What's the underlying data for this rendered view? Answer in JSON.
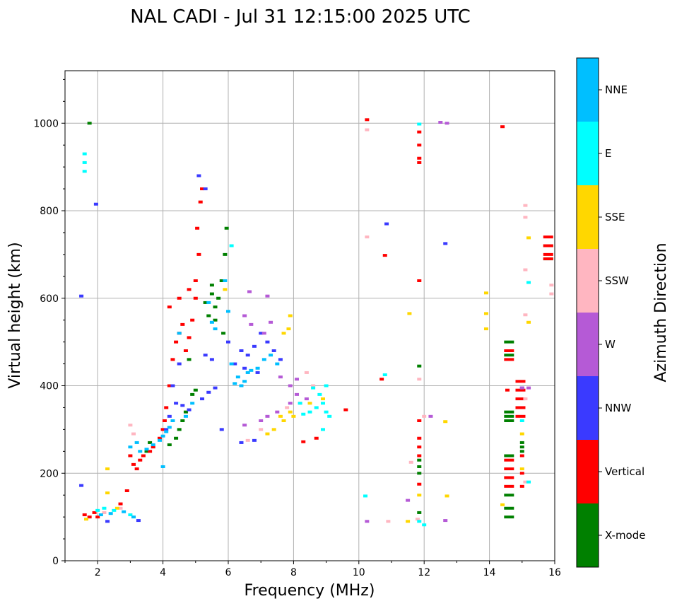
{
  "chart_data": {
    "type": "scatter",
    "title": "NAL CADI - Jul 31 12:15:00 2025 UTC",
    "xlabel": "Frequency (MHz)",
    "ylabel": "Virtual height (km)",
    "xlim": [
      1,
      16
    ],
    "ylim": [
      0,
      1120
    ],
    "xticks": [
      2,
      4,
      6,
      8,
      10,
      12,
      14,
      16
    ],
    "yticks": [
      0,
      200,
      400,
      600,
      800,
      1000
    ],
    "grid": true,
    "colorbar": {
      "label": "Azimuth Direction",
      "categories": [
        {
          "name": "X-mode",
          "color": "#008000"
        },
        {
          "name": "Vertical",
          "color": "#ff0000"
        },
        {
          "name": "NNW",
          "color": "#3a3aff"
        },
        {
          "name": "W",
          "color": "#b55ad6"
        },
        {
          "name": "SSW",
          "color": "#ffb6c1"
        },
        {
          "name": "SSE",
          "color": "#ffd700"
        },
        {
          "name": "E",
          "color": "#00ffff"
        },
        {
          "name": "NNE",
          "color": "#00bfff"
        }
      ]
    },
    "series": [
      {
        "name": "X-mode",
        "points": [
          [
            1.75,
            1000
          ],
          [
            5.5,
            610
          ],
          [
            5.6,
            580
          ],
          [
            5.4,
            560
          ],
          [
            5.8,
            640
          ],
          [
            5.9,
            700
          ],
          [
            5.95,
            760
          ],
          [
            5.7,
            600
          ],
          [
            5.5,
            630
          ],
          [
            5.6,
            550
          ],
          [
            5.3,
            590
          ],
          [
            5.85,
            520
          ],
          [
            4.8,
            460
          ],
          [
            4.6,
            320
          ],
          [
            4.7,
            340
          ],
          [
            4.9,
            380
          ],
          [
            5.0,
            390
          ],
          [
            4.4,
            280
          ],
          [
            4.5,
            300
          ],
          [
            4.2,
            265
          ],
          [
            3.6,
            270
          ],
          [
            3.5,
            250
          ],
          [
            11.85,
            445
          ],
          [
            11.85,
            230
          ],
          [
            11.85,
            215
          ],
          [
            11.85,
            200
          ],
          [
            11.85,
            110
          ],
          [
            14.6,
            500
          ],
          [
            14.6,
            470
          ],
          [
            14.6,
            320
          ],
          [
            14.6,
            330
          ],
          [
            14.6,
            340
          ],
          [
            14.6,
            240
          ],
          [
            14.6,
            150
          ],
          [
            14.6,
            120
          ],
          [
            14.6,
            100
          ],
          [
            15.0,
            270
          ],
          [
            15.0,
            260
          ],
          [
            15.0,
            250
          ],
          [
            15.8,
            690
          ],
          [
            15.8,
            720
          ]
        ]
      },
      {
        "name": "Vertical",
        "points": [
          [
            1.6,
            105
          ],
          [
            1.75,
            100
          ],
          [
            1.9,
            110
          ],
          [
            2.0,
            100
          ],
          [
            2.7,
            130
          ],
          [
            2.9,
            160
          ],
          [
            3.0,
            240
          ],
          [
            3.1,
            220
          ],
          [
            3.2,
            210
          ],
          [
            3.3,
            230
          ],
          [
            3.4,
            240
          ],
          [
            3.6,
            250
          ],
          [
            3.7,
            260
          ],
          [
            3.9,
            280
          ],
          [
            4.0,
            300
          ],
          [
            4.05,
            320
          ],
          [
            4.1,
            350
          ],
          [
            4.2,
            400
          ],
          [
            4.3,
            460
          ],
          [
            4.4,
            500
          ],
          [
            4.5,
            520
          ],
          [
            4.6,
            540
          ],
          [
            4.7,
            480
          ],
          [
            4.8,
            510
          ],
          [
            4.9,
            550
          ],
          [
            5.0,
            600
          ],
          [
            5.1,
            700
          ],
          [
            5.05,
            760
          ],
          [
            5.2,
            850
          ],
          [
            4.2,
            580
          ],
          [
            4.5,
            600
          ],
          [
            4.8,
            620
          ],
          [
            5.0,
            640
          ],
          [
            5.15,
            820
          ],
          [
            10.25,
            1008
          ],
          [
            10.8,
            698
          ],
          [
            10.7,
            415
          ],
          [
            11.85,
            980
          ],
          [
            11.85,
            950
          ],
          [
            11.85,
            920
          ],
          [
            11.85,
            910
          ],
          [
            11.85,
            640
          ],
          [
            11.85,
            320
          ],
          [
            11.85,
            280
          ],
          [
            11.85,
            260
          ],
          [
            11.85,
            240
          ],
          [
            11.85,
            175
          ],
          [
            14.4,
            992
          ],
          [
            14.55,
            390
          ],
          [
            14.6,
            480
          ],
          [
            14.6,
            460
          ],
          [
            14.6,
            230
          ],
          [
            14.6,
            210
          ],
          [
            14.6,
            190
          ],
          [
            14.6,
            170
          ],
          [
            14.95,
            410
          ],
          [
            14.95,
            390
          ],
          [
            14.95,
            370
          ],
          [
            14.95,
            350
          ],
          [
            14.95,
            330
          ],
          [
            15.0,
            240
          ],
          [
            15.0,
            200
          ],
          [
            15.0,
            170
          ],
          [
            15.8,
            740
          ],
          [
            15.8,
            720
          ],
          [
            15.8,
            700
          ],
          [
            15.8,
            690
          ],
          [
            9.6,
            345
          ],
          [
            8.7,
            280
          ],
          [
            8.3,
            272
          ]
        ]
      },
      {
        "name": "NNW",
        "points": [
          [
            1.5,
            605
          ],
          [
            1.5,
            172
          ],
          [
            1.95,
            815
          ],
          [
            2.3,
            90
          ],
          [
            3.25,
            92
          ],
          [
            4.1,
            300
          ],
          [
            4.2,
            330
          ],
          [
            4.4,
            360
          ],
          [
            4.6,
            355
          ],
          [
            4.8,
            345
          ],
          [
            5.2,
            370
          ],
          [
            5.4,
            385
          ],
          [
            5.6,
            395
          ],
          [
            5.8,
            300
          ],
          [
            6.2,
            450
          ],
          [
            6.4,
            480
          ],
          [
            6.6,
            470
          ],
          [
            6.8,
            490
          ],
          [
            7.0,
            520
          ],
          [
            7.2,
            500
          ],
          [
            7.4,
            480
          ],
          [
            7.6,
            460
          ],
          [
            6.0,
            500
          ],
          [
            6.5,
            440
          ],
          [
            6.9,
            430
          ],
          [
            5.3,
            470
          ],
          [
            5.5,
            460
          ],
          [
            6.4,
            270
          ],
          [
            6.8,
            275
          ],
          [
            10.85,
            770
          ],
          [
            12.65,
            725
          ],
          [
            15.0,
            395
          ],
          [
            4.3,
            400
          ],
          [
            4.5,
            450
          ],
          [
            5.1,
            880
          ],
          [
            5.3,
            850
          ]
        ]
      },
      {
        "name": "W",
        "points": [
          [
            6.65,
            615
          ],
          [
            7.2,
            605
          ],
          [
            6.5,
            560
          ],
          [
            6.7,
            540
          ],
          [
            7.1,
            520
          ],
          [
            7.3,
            545
          ],
          [
            7.6,
            420
          ],
          [
            7.9,
            400
          ],
          [
            8.1,
            380
          ],
          [
            8.4,
            370
          ],
          [
            6.5,
            310
          ],
          [
            7.0,
            320
          ],
          [
            7.2,
            330
          ],
          [
            7.5,
            340
          ],
          [
            10.25,
            90
          ],
          [
            12.5,
            1002
          ],
          [
            12.7,
            1000
          ],
          [
            12.65,
            92
          ],
          [
            15.0,
            395
          ],
          [
            15.2,
            395
          ],
          [
            12.2,
            330
          ],
          [
            11.5,
            138
          ],
          [
            8.1,
            415
          ],
          [
            7.9,
            360
          ]
        ]
      },
      {
        "name": "SSW",
        "points": [
          [
            10.25,
            985
          ],
          [
            10.25,
            740
          ],
          [
            11.85,
            415
          ],
          [
            11.6,
            225
          ],
          [
            12.0,
            330
          ],
          [
            15.1,
            812
          ],
          [
            15.1,
            785
          ],
          [
            15.1,
            665
          ],
          [
            15.1,
            562
          ],
          [
            15.1,
            370
          ],
          [
            15.1,
            180
          ],
          [
            15.9,
            630
          ],
          [
            15.9,
            610
          ],
          [
            11.8,
            95
          ],
          [
            10.9,
            90
          ],
          [
            8.4,
            430
          ],
          [
            8.6,
            400
          ],
          [
            8.2,
            360
          ],
          [
            7.8,
            350
          ],
          [
            6.6,
            275
          ],
          [
            7.0,
            300
          ],
          [
            3.1,
            290
          ],
          [
            3.0,
            310
          ],
          [
            2.7,
            120
          ],
          [
            2.2,
            110
          ]
        ]
      },
      {
        "name": "SSE",
        "points": [
          [
            2.3,
            210
          ],
          [
            2.3,
            155
          ],
          [
            2.6,
            120
          ],
          [
            1.65,
            95
          ],
          [
            7.7,
            520
          ],
          [
            7.85,
            530
          ],
          [
            7.9,
            560
          ],
          [
            7.6,
            330
          ],
          [
            7.7,
            320
          ],
          [
            7.9,
            340
          ],
          [
            8.0,
            330
          ],
          [
            8.5,
            360
          ],
          [
            8.9,
            370
          ],
          [
            7.2,
            290
          ],
          [
            7.4,
            300
          ],
          [
            13.9,
            612
          ],
          [
            13.9,
            565
          ],
          [
            13.9,
            530
          ],
          [
            11.55,
            565
          ],
          [
            12.65,
            318
          ],
          [
            12.7,
            148
          ],
          [
            11.85,
            150
          ],
          [
            11.5,
            90
          ],
          [
            14.4,
            128
          ],
          [
            15.2,
            545
          ],
          [
            15.2,
            738
          ],
          [
            15.0,
            210
          ],
          [
            15.0,
            290
          ],
          [
            5.9,
            620
          ]
        ]
      },
      {
        "name": "E",
        "points": [
          [
            1.6,
            930
          ],
          [
            1.6,
            910
          ],
          [
            1.6,
            890
          ],
          [
            6.1,
            720
          ],
          [
            8.8,
            380
          ],
          [
            8.9,
            360
          ],
          [
            9.0,
            340
          ],
          [
            9.1,
            330
          ],
          [
            8.7,
            350
          ],
          [
            8.5,
            340
          ],
          [
            8.3,
            335
          ],
          [
            8.9,
            300
          ],
          [
            8.6,
            395
          ],
          [
            9.0,
            400
          ],
          [
            8.2,
            360
          ],
          [
            10.8,
            425
          ],
          [
            10.2,
            148
          ],
          [
            11.85,
            998
          ],
          [
            11.85,
            90
          ],
          [
            12.0,
            82
          ],
          [
            15.2,
            636
          ],
          [
            15.0,
            320
          ],
          [
            15.2,
            180
          ],
          [
            3.0,
            105
          ],
          [
            2.5,
            115
          ],
          [
            2.2,
            120
          ],
          [
            2.0,
            115
          ]
        ]
      },
      {
        "name": "NNE",
        "points": [
          [
            3.0,
            260
          ],
          [
            3.2,
            270
          ],
          [
            3.3,
            250
          ],
          [
            3.5,
            255
          ],
          [
            3.7,
            265
          ],
          [
            3.9,
            275
          ],
          [
            4.0,
            285
          ],
          [
            4.1,
            295
          ],
          [
            4.2,
            305
          ],
          [
            4.3,
            320
          ],
          [
            4.0,
            215
          ],
          [
            5.4,
            590
          ],
          [
            5.5,
            545
          ],
          [
            5.6,
            530
          ],
          [
            5.9,
            640
          ],
          [
            6.0,
            570
          ],
          [
            6.1,
            450
          ],
          [
            6.3,
            420
          ],
          [
            6.5,
            410
          ],
          [
            6.7,
            435
          ],
          [
            6.9,
            440
          ],
          [
            7.1,
            460
          ],
          [
            7.3,
            470
          ],
          [
            7.5,
            450
          ],
          [
            6.2,
            405
          ],
          [
            6.4,
            400
          ],
          [
            6.6,
            430
          ],
          [
            4.5,
            520
          ],
          [
            4.7,
            330
          ],
          [
            4.9,
            360
          ],
          [
            2.1,
            105
          ],
          [
            2.4,
            108
          ],
          [
            2.8,
            112
          ],
          [
            3.1,
            100
          ]
        ]
      }
    ]
  }
}
